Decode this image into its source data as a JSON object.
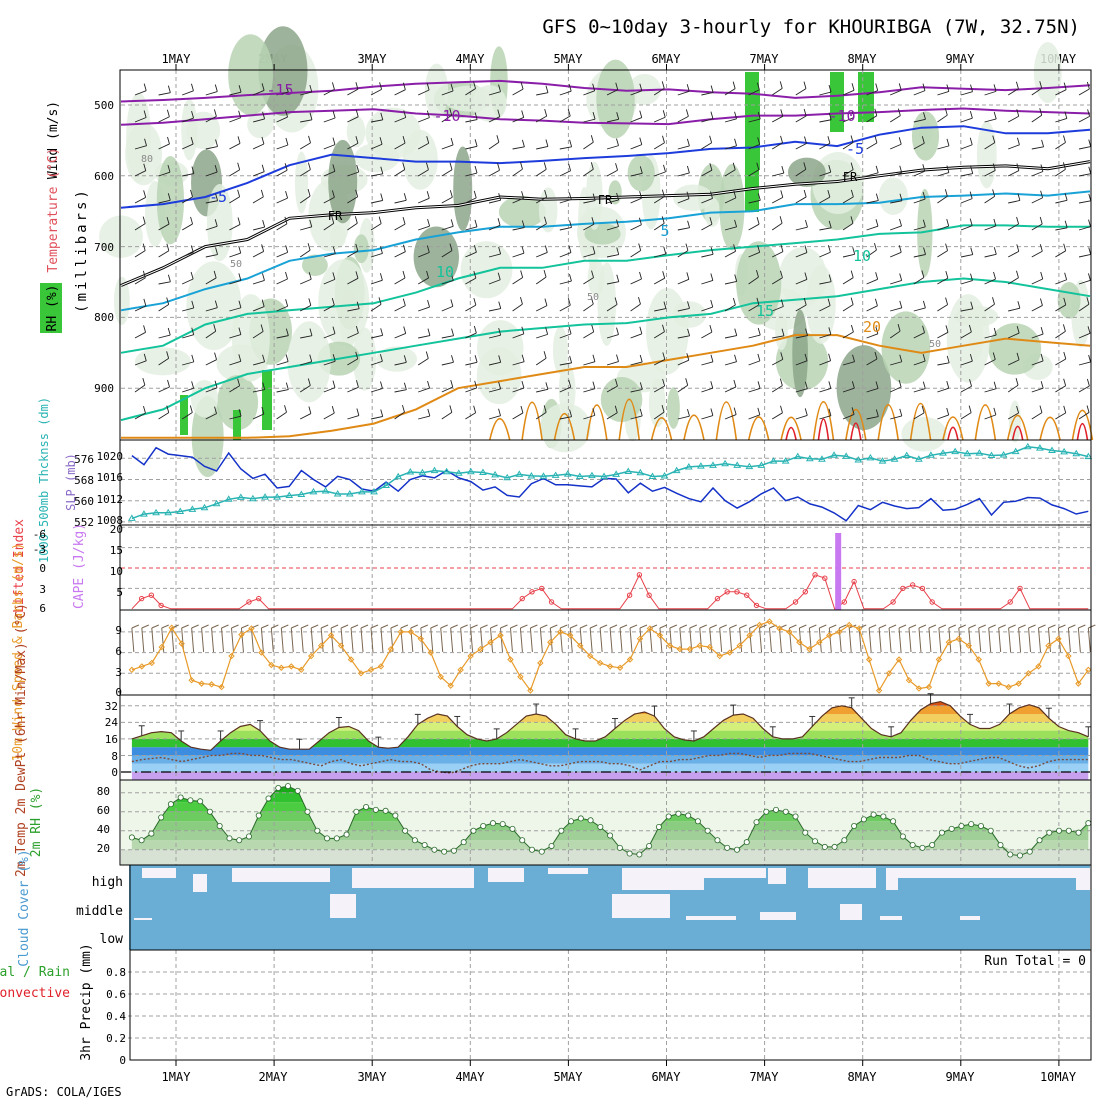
{
  "title": "GFS 0~10day 3-hourly for KHOURIBGA (7W, 32.75N)",
  "footer": "GrADS: COLA/IGES",
  "colors": {
    "rh_light": "#e3efe1",
    "rh_mid": "#b9d3b4",
    "rh_dark": "#8ca68a",
    "rh_green": "#39c739",
    "purple": "#8a1ea8",
    "blue": "#1e3cdc",
    "cyan": "#19a2d6",
    "teal": "#13c39b",
    "orange": "#e08a16",
    "red": "#e0202a",
    "slp": "#1432c8",
    "thick": "#29b3b3",
    "li": "#e8404a",
    "cape": "#c878f0",
    "wind10": "#e89a28",
    "barb": "#7a6650",
    "dew": "#7a4a3a",
    "cloud": "#6aaed6",
    "cloud_bg": "#f5f2fa",
    "precip_green": "#3cc83c"
  },
  "chart_data": [
    {
      "panel": "profile",
      "type": "heatmap",
      "x_ticks": [
        "1MAY",
        "2MAY",
        "3MAY",
        "4MAY",
        "5MAY",
        "6MAY",
        "7MAY",
        "8MAY",
        "9MAY",
        "10MAY"
      ],
      "ylabel_wind": "Wind (m/s)",
      "ylabel_temp": "Temperature (°C)",
      "ylabel_rh": "RH (%)",
      "ylabel_p": "(millibars)",
      "y_ticks": [
        500,
        600,
        700,
        800,
        900
      ],
      "ylim": [
        970,
        450
      ],
      "x_days": [
        0.55,
        10.3
      ],
      "isotherms": [
        {
          "label": "-15",
          "color": "purple",
          "p": [
            495,
            493,
            490,
            486,
            483,
            480,
            474,
            470,
            468,
            466,
            470,
            476,
            480,
            478,
            482,
            484,
            490,
            487,
            482,
            475,
            477,
            479,
            476,
            472
          ]
        },
        {
          "label": "-10",
          "color": "purple",
          "p": [
            528,
            525,
            520,
            515,
            510,
            508,
            506,
            512,
            515,
            520,
            522,
            525,
            526,
            527,
            520,
            515,
            515,
            512,
            510,
            507,
            505,
            508,
            510,
            512
          ]
        },
        {
          "label": "-5",
          "color": "blue",
          "p": [
            645,
            640,
            630,
            610,
            585,
            570,
            575,
            580,
            580,
            582,
            579,
            575,
            572,
            568,
            562,
            560,
            552,
            558,
            542,
            532,
            530,
            540,
            540,
            535
          ]
        },
        {
          "label": "FR",
          "color": "black",
          "p": [
            755,
            730,
            700,
            690,
            660,
            655,
            652,
            645,
            642,
            630,
            633,
            632,
            630,
            628,
            626,
            618,
            612,
            608,
            600,
            592,
            588,
            586,
            590,
            580
          ]
        },
        {
          "label": "5",
          "color": "cyan",
          "p": [
            790,
            780,
            760,
            745,
            720,
            710,
            705,
            690,
            680,
            672,
            672,
            668,
            665,
            660,
            652,
            650,
            640,
            640,
            638,
            630,
            628,
            625,
            628,
            622
          ]
        },
        {
          "label": "10",
          "color": "teal",
          "p": [
            850,
            840,
            810,
            795,
            790,
            785,
            780,
            765,
            745,
            730,
            730,
            720,
            720,
            712,
            705,
            700,
            695,
            690,
            682,
            680,
            670,
            670,
            672,
            672
          ]
        },
        {
          "label": "15",
          "color": "teal",
          "p": [
            945,
            930,
            900,
            880,
            870,
            860,
            850,
            840,
            830,
            820,
            815,
            810,
            808,
            800,
            795,
            780,
            775,
            770,
            760,
            750,
            745,
            750,
            760,
            770
          ]
        },
        {
          "label": "20",
          "color": "orange",
          "p": [
            970,
            970,
            970,
            970,
            968,
            960,
            950,
            930,
            900,
            890,
            880,
            870,
            870,
            860,
            850,
            840,
            825,
            825,
            840,
            850,
            840,
            830,
            835,
            840
          ]
        }
      ],
      "contour_labels": [
        "-15",
        "-10",
        "-10",
        "-5",
        "-5",
        "FR",
        "FR",
        "FR",
        "5",
        "10",
        "10",
        "15",
        "20",
        "50",
        "50",
        "50",
        "80"
      ]
    },
    {
      "panel": "slp_thickness",
      "type": "line",
      "ylabel_left": "1000-500mb Thcknss (dm)",
      "ylabel_right": "SLP (mb)",
      "y_ticks_left": [
        552,
        560,
        568,
        576
      ],
      "y_ticks_right": [
        1008,
        1012,
        1016,
        1020
      ],
      "series": [
        {
          "name": "SLP (mb)",
          "color": "slp",
          "unit": "mb",
          "ylim": [
            1006,
            1023
          ],
          "values": [
            1020.5,
            1018.8,
            1022.0,
            1020.8,
            1020.5,
            1020.2,
            1018.5,
            1017.6,
            1021.0,
            1018.0,
            1016.2,
            1017.0,
            1014.4,
            1014.7,
            1017.7,
            1016.0,
            1014.6,
            1016.6,
            1016.0,
            1014.2,
            1013.8,
            1015.5,
            1013.8,
            1016.0,
            1016.7,
            1016.3,
            1017.7,
            1016.3,
            1015.6,
            1014.0,
            1014.6,
            1013.0,
            1012.7,
            1015.2,
            1016.2,
            1015.0,
            1015.0,
            1014.8,
            1014.6,
            1016.2,
            1016.1,
            1013.5,
            1015.3,
            1013.8,
            1014.5,
            1013.4,
            1012.4,
            1011.8,
            1014.4,
            1012.0,
            1010.6,
            1011.8,
            1013.3,
            1014.4,
            1012.0,
            1012.7,
            1011.4,
            1010.8,
            1009.7,
            1008.2,
            1011.1,
            1010.3,
            1011.7,
            1011.0,
            1010.5,
            1010.7,
            1012.4,
            1010.2,
            1010.4,
            1011.3,
            1012.4,
            1009.3,
            1011.7,
            1011.9,
            1012.6,
            1012.5,
            1011.2,
            1010.5,
            1009.5,
            1010.0
          ]
        },
        {
          "name": "1000-500mb Thcknss (dm)",
          "color": "thick",
          "unit": "dm",
          "ylim": [
            550,
            582
          ],
          "values": [
            553.0,
            554.6,
            555.1,
            555.1,
            555.6,
            556.4,
            557.0,
            558.5,
            560.2,
            560.9,
            560.4,
            561.0,
            561.0,
            561.6,
            562.0,
            563.0,
            563.3,
            562.2,
            562.2,
            563.0,
            563.0,
            565.4,
            568.7,
            570.5,
            570.2,
            571.0,
            570.6,
            570.0,
            570.6,
            570.3,
            569.4,
            568.3,
            569.6,
            569.0,
            568.9,
            569.2,
            569.7,
            568.8,
            569.1,
            568.8,
            569.6,
            570.7,
            570.2,
            568.8,
            569.0,
            571.0,
            572.4,
            572.7,
            573.0,
            573.6,
            573.0,
            572.5,
            573.0,
            574.6,
            574.6,
            576.3,
            575.5,
            575.3,
            576.8,
            576.4,
            575.0,
            575.8,
            574.6,
            575.3,
            576.7,
            575.3,
            576.8,
            577.6,
            578.2,
            577.4,
            577.6,
            576.7,
            576.9,
            578.2,
            580.0,
            579.5,
            578.6,
            578.1,
            577.4,
            576.3
          ]
        }
      ]
    },
    {
      "panel": "lifted_cape",
      "type": "line",
      "ylabel_left": "Lifted Index",
      "ylabel_right": "CAPE (J/kg)",
      "y_ticks_left": [
        "-6",
        "-3",
        "0",
        "3",
        "6"
      ],
      "y_ticks_right": [
        5,
        10,
        15,
        20
      ],
      "series": [
        {
          "name": "Lifted Index",
          "color": "li",
          "ylim": [
            6,
            -6
          ],
          "values": [
            6,
            4.5,
            4,
            5.5,
            6,
            6,
            6,
            6,
            6,
            6,
            6,
            6,
            5,
            4.5,
            6,
            6,
            6,
            6,
            6,
            6,
            6,
            6,
            6,
            6,
            6,
            6,
            6,
            6,
            6,
            6,
            6,
            6,
            6,
            6,
            6,
            6,
            6,
            6,
            6,
            6,
            4.5,
            3.5,
            3,
            5,
            6,
            6,
            6,
            6,
            6,
            6,
            6,
            4,
            1,
            4,
            6,
            6,
            6,
            6,
            6,
            6,
            4.5,
            3.5,
            3.5,
            4,
            5.5,
            6,
            6,
            6,
            5,
            3.5,
            1,
            1.5,
            6,
            5,
            2,
            6,
            6,
            6,
            5,
            3,
            2.5,
            3,
            5,
            6,
            6,
            6,
            6,
            6,
            6,
            6,
            5,
            3,
            6,
            6,
            6,
            6,
            6,
            6,
            6
          ]
        },
        {
          "name": "CAPE (J/kg)",
          "color": "cape",
          "spike_day": 7.75,
          "spike_value": 20
        }
      ]
    },
    {
      "panel": "wind10",
      "type": "line",
      "ylabel": "10m Wind Speed & Barbs (m/s)",
      "y_ticks": [
        0,
        3,
        6,
        9
      ],
      "ylim": [
        0,
        11
      ],
      "series": [
        {
          "name": "10m Wind Speed",
          "color": "wind10",
          "values": [
            3.5,
            4.0,
            4.5,
            6.8,
            9.6,
            7.3,
            2.0,
            1.5,
            1.4,
            1.0,
            5.5,
            8.6,
            9.5,
            6.0,
            4.2,
            3.8,
            4.0,
            3.5,
            5.5,
            7.0,
            8.5,
            7.0,
            5.0,
            3.0,
            3.5,
            4.0,
            6.5,
            9.0,
            9.0,
            8.0,
            6.0,
            2.5,
            1.2,
            3.5,
            5.5,
            6.5,
            7.5,
            8.5,
            5.0,
            2.5,
            0.5,
            4.5,
            7.5,
            9.0,
            8.5,
            7.0,
            5.5,
            4.5,
            4.0,
            3.8,
            5.0,
            8.0,
            9.5,
            8.5,
            7.0,
            6.5,
            6.5,
            7.0,
            6.8,
            5.5,
            6.0,
            7.0,
            8.5,
            10.0,
            10.5,
            9.5,
            9.0,
            7.5,
            6.5,
            7.5,
            8.5,
            9.0,
            10.0,
            9.5,
            5.0,
            0.5,
            3.0,
            5.0,
            2.0,
            0.8,
            1.0,
            5.0,
            7.5,
            8.0,
            7.0,
            5.0,
            1.5,
            1.5,
            1.0,
            1.5,
            3.0,
            4.0,
            7.0,
            8.0,
            5.5,
            1.5,
            3.5
          ]
        }
      ]
    },
    {
      "panel": "temperature",
      "type": "area",
      "ylabel": "2m Temp 2m DewPt (6hr Min/Max) (°C)",
      "y_ticks": [
        0,
        8,
        16,
        24,
        32
      ],
      "ylim": [
        -2,
        36
      ],
      "series": [
        {
          "name": "2m Temp",
          "values": [
            16,
            17.5,
            19,
            19.5,
            19,
            15,
            12,
            11,
            10.5,
            15,
            19,
            22,
            23,
            20,
            15,
            12,
            11,
            11,
            11,
            15,
            19,
            21.5,
            22,
            20,
            15,
            12,
            11.5,
            12,
            17,
            23,
            26,
            28,
            27,
            22,
            18,
            16,
            15,
            16,
            19,
            23,
            27,
            28,
            27,
            23,
            18,
            16,
            15,
            15,
            17,
            21,
            25,
            28,
            29,
            27,
            21,
            17,
            15.5,
            15,
            17,
            21,
            25,
            27.5,
            28,
            26,
            21,
            17,
            16,
            16,
            17,
            22,
            27,
            31,
            32,
            31,
            26,
            21,
            18,
            17,
            19,
            25,
            30,
            33,
            34,
            32,
            27,
            23,
            21,
            21,
            23,
            28,
            31,
            32.5,
            31,
            26,
            22,
            20,
            19,
            17
          ]
        },
        {
          "name": "2m DewPt",
          "values": [
            5,
            6,
            6.5,
            7,
            6,
            5,
            6,
            7,
            8,
            8,
            9,
            9,
            8,
            8,
            7,
            6,
            6,
            5,
            4,
            3,
            5,
            6,
            4,
            3,
            4,
            5,
            6,
            5,
            5,
            4,
            1,
            0,
            -0.5,
            1,
            3,
            4,
            4,
            4,
            5,
            6,
            5,
            4,
            3,
            3,
            4,
            5,
            5,
            5,
            4,
            4,
            3,
            1,
            3,
            5,
            5,
            6,
            6,
            7,
            8,
            8,
            9,
            9,
            8,
            7,
            8,
            8,
            9,
            9,
            9,
            8,
            7,
            6,
            5,
            5,
            6,
            7,
            7,
            7,
            8,
            8,
            6,
            5,
            4,
            4,
            5,
            6,
            7,
            7,
            5,
            3,
            2,
            3,
            5,
            6,
            6,
            6,
            6
          ]
        }
      ]
    },
    {
      "panel": "rh2m",
      "type": "area",
      "ylabel": "2m RH (%)",
      "y_ticks": [
        20,
        40,
        60,
        80
      ],
      "ylim": [
        5,
        90
      ],
      "series": [
        {
          "name": "2m RH",
          "values": [
            33,
            30,
            37,
            54,
            68,
            75,
            72,
            71,
            60,
            45,
            32,
            30,
            34,
            56,
            74,
            85,
            87,
            82,
            60,
            40,
            32,
            32,
            36,
            60,
            65,
            62,
            61,
            56,
            40,
            30,
            25,
            20,
            18,
            19,
            28,
            40,
            45,
            48,
            47,
            42,
            30,
            20,
            18,
            24,
            40,
            50,
            53,
            51,
            44,
            35,
            22,
            16,
            15,
            24,
            44,
            55,
            58,
            56,
            50,
            40,
            30,
            22,
            20,
            28,
            49,
            60,
            62,
            60,
            55,
            38,
            29,
            23,
            23,
            30,
            45,
            52,
            57,
            55,
            50,
            34,
            25,
            22,
            25,
            38,
            42,
            45,
            47,
            45,
            40,
            25,
            15,
            14,
            18,
            30,
            38,
            40,
            40,
            38,
            48
          ]
        }
      ]
    },
    {
      "panel": "cloud",
      "type": "heatmap",
      "ylabel": "Cloud Cover (%)",
      "levels": [
        "high",
        "middle",
        "low"
      ]
    },
    {
      "panel": "precip",
      "type": "bar",
      "ylabel_prefix": "Total / Rain",
      "ylabel_conv": "Convective",
      "ylabel": "3hr Precip (mm)",
      "y_ticks": [
        "0",
        "0.2",
        "0.4",
        "0.6",
        "0.8"
      ],
      "ylim": [
        0,
        0.95
      ],
      "run_total": "Run Total = 0",
      "values": []
    }
  ]
}
